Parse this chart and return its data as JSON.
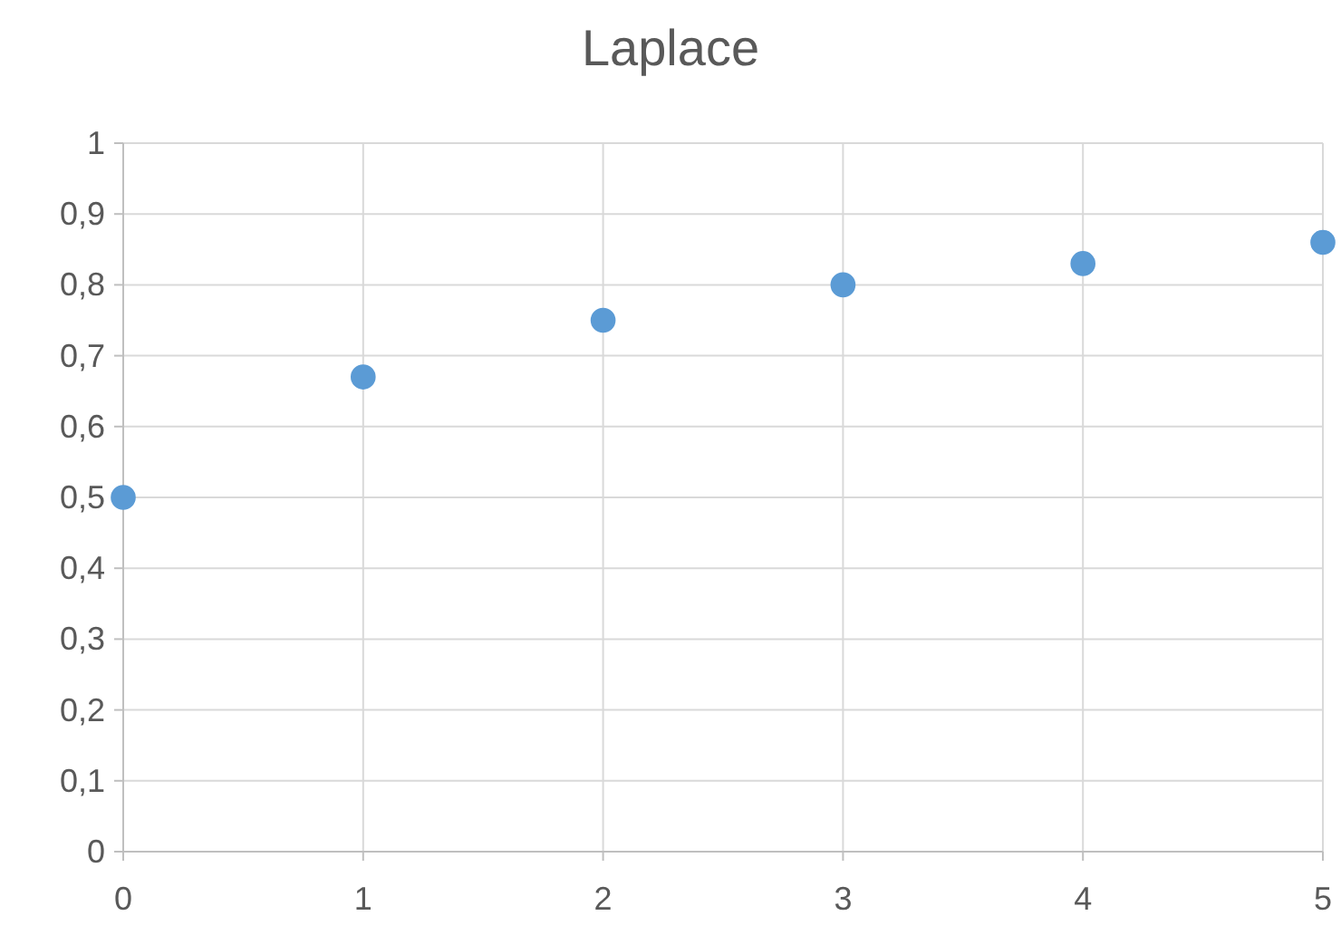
{
  "chart_data": {
    "type": "scatter",
    "title": "Laplace",
    "x": [
      0,
      1,
      2,
      3,
      4,
      5
    ],
    "series": [
      {
        "color": "#5b9bd5",
        "values": [
          0.5,
          0.67,
          0.75,
          0.8,
          0.83,
          0.86
        ]
      }
    ],
    "xlim": [
      0,
      5
    ],
    "xticks": [
      0,
      1,
      2,
      3,
      4,
      5
    ],
    "ylim": [
      0,
      1
    ],
    "yticks": [
      0,
      {
        "value": 0.1,
        "label": "0,1"
      },
      {
        "value": 0.2,
        "label": "0,2"
      },
      {
        "value": 0.3,
        "label": "0,3"
      },
      {
        "value": 0.4,
        "label": "0,4"
      },
      {
        "value": 0.5,
        "label": "0,5"
      },
      {
        "value": 0.6,
        "label": "0,6"
      },
      {
        "value": 0.7,
        "label": "0,7"
      },
      {
        "value": 0.8,
        "label": "0,8"
      },
      {
        "value": 0.9,
        "label": "0,9"
      },
      1
    ],
    "grid": true,
    "marker": "circle"
  }
}
